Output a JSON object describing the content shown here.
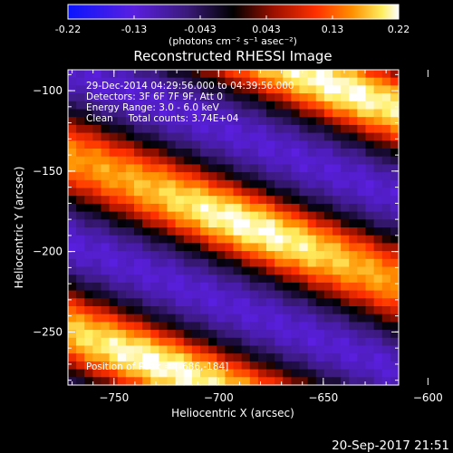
{
  "chart_data": {
    "type": "heatmap",
    "title": "Reconstructed RHESSI Image",
    "xlabel": "Heliocentric X (arcsec)",
    "ylabel": "Heliocentric Y (arcsec)",
    "xlim": [
      -772,
      -614
    ],
    "ylim": [
      -283,
      -87
    ],
    "xticks": [
      -750,
      -700,
      -650,
      -600
    ],
    "yticks": [
      -100,
      -150,
      -200,
      -250
    ],
    "colorbar": {
      "label": "(photons cm⁻² s⁻¹ asec⁻²)",
      "ticks": [
        "-0.22",
        "-0.13",
        "-0.043",
        "0.043",
        "0.13",
        "0.22"
      ],
      "range": [
        -0.22,
        0.22
      ]
    },
    "annotations": [
      "29-Dec-2014 04:29:56.000 to 04:39:56.000",
      "Detectors: 3F 6F 7F 9F, Att 0",
      "Energy Range: 3.0 - 6.0 keV",
      "Clean     Total counts: 3.74E+04"
    ],
    "peak_label": "Position of Peak = [-686,-184]",
    "peak": [
      -686,
      -184
    ],
    "peak_value": 0.22,
    "grid": false
  },
  "footer": {
    "timestamp": "20-Sep-2017 21:51"
  }
}
